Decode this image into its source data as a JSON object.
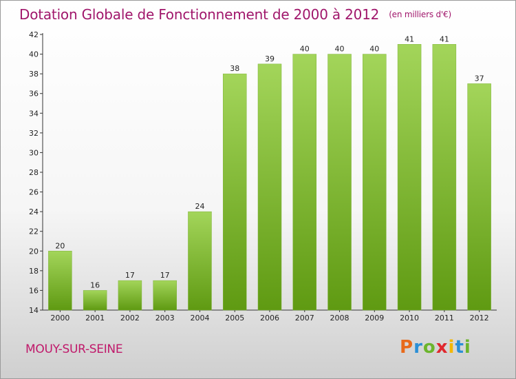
{
  "header": {
    "title": "Dotation Globale de Fonctionnement de 2000 à 2012",
    "unit": "(en milliers d'€)"
  },
  "footer": {
    "commune": "MOUY-SUR-SEINE",
    "logo_letters": [
      "P",
      "r",
      "o",
      "x",
      "i",
      "t",
      "i"
    ],
    "logo_colors": [
      "#e86a1a",
      "#2b8fd6",
      "#6cb52d",
      "#e0282e",
      "#f2b705",
      "#2b8fd6",
      "#6cb52d"
    ]
  },
  "chart_data": {
    "type": "bar",
    "title": "Dotation Globale de Fonctionnement de 2000 à 2012",
    "xlabel": "",
    "ylabel": "",
    "categories": [
      "2000",
      "2001",
      "2002",
      "2003",
      "2004",
      "2005",
      "2006",
      "2007",
      "2008",
      "2009",
      "2010",
      "2011",
      "2012"
    ],
    "values": [
      20,
      16,
      17,
      17,
      24,
      38,
      39,
      40,
      40,
      40,
      41,
      41,
      37
    ],
    "ylim": [
      14,
      42
    ],
    "yticks": [
      14,
      16,
      18,
      20,
      22,
      24,
      26,
      28,
      30,
      32,
      34,
      36,
      38,
      40,
      42
    ],
    "grid": false,
    "legend": "none",
    "bar_color_top": "#a3d55a",
    "bar_color_bottom": "#5f9a12"
  }
}
